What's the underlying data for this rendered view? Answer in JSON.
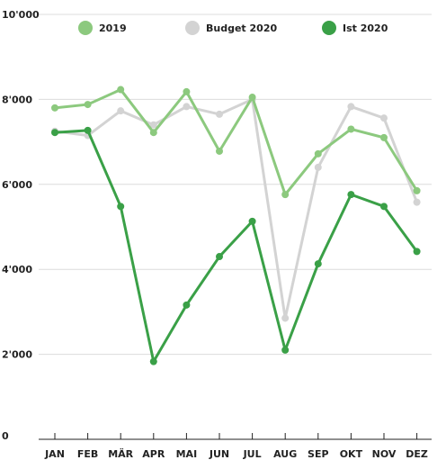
{
  "chart_data": {
    "type": "line",
    "categories": [
      "JAN",
      "FEB",
      "MÄR",
      "APR",
      "MAI",
      "JUN",
      "JUL",
      "AUG",
      "SEP",
      "OKT",
      "NOV",
      "DEZ"
    ],
    "y_tick_labels": [
      "0",
      "2'000",
      "4'000",
      "6'000",
      "8'000",
      "10'000"
    ],
    "y_tick_values": [
      0,
      2000,
      4000,
      6000,
      8000,
      10000
    ],
    "ylim": [
      0,
      10000
    ],
    "grid": true,
    "legend_position": "top",
    "series": [
      {
        "name": "2019",
        "color": "#8cc97e",
        "values": [
          7800,
          7880,
          8230,
          7220,
          8180,
          6780,
          8050,
          5760,
          6720,
          7300,
          7100,
          5850
        ]
      },
      {
        "name": "Budget 2020",
        "color": "#d3d3d3",
        "values": [
          7250,
          7150,
          7730,
          7400,
          7830,
          7650,
          8000,
          2850,
          6400,
          7830,
          7560,
          5580
        ]
      },
      {
        "name": "Ist 2020",
        "color": "#3aa047",
        "values": [
          7220,
          7270,
          5480,
          1830,
          3160,
          4300,
          5130,
          2100,
          4130,
          5760,
          5480,
          4420
        ]
      }
    ]
  }
}
